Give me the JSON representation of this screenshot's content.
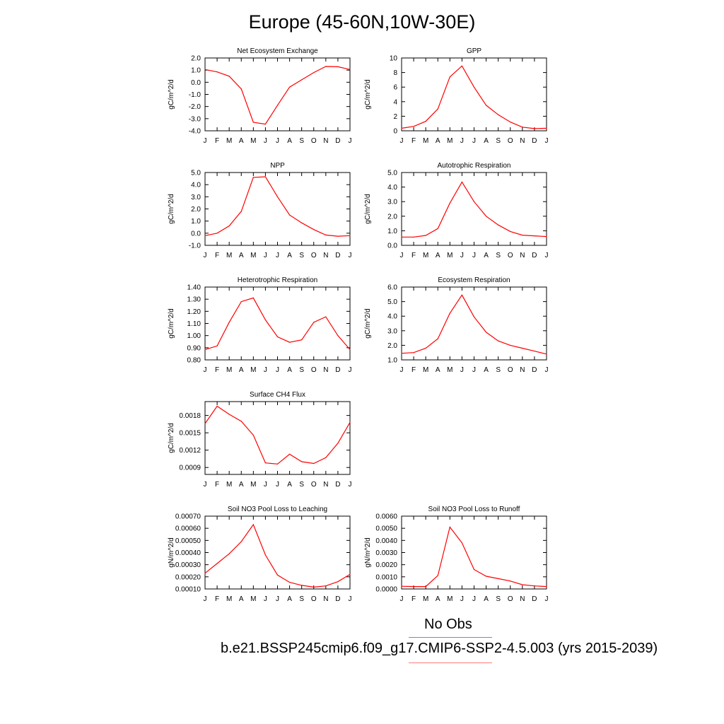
{
  "title": "Europe (45-60N,10W-30E)",
  "legend": {
    "obs_label": "No Obs",
    "obs_color": "#7b7bff",
    "case_label": "b.e21.BSSP245cmip6.f09_g17.CMIP6-SSP2-4.5.003 (yrs 2015-2039)",
    "case_color": "#ff7b7b"
  },
  "series_color": "#ff0000",
  "chart_data": [
    {
      "type": "line",
      "title": "Net Ecosystem Exchange",
      "ylabel": "gC/m^2/d",
      "categories": [
        "J",
        "F",
        "M",
        "A",
        "M",
        "J",
        "J",
        "A",
        "S",
        "O",
        "N",
        "D",
        "J"
      ],
      "ylim": [
        -4.0,
        2.0
      ],
      "yticks": [
        "2.0",
        "1.0",
        "0.0",
        "-1.0",
        "-2.0",
        "-3.0",
        "-4.0"
      ],
      "ytick_values": [
        2.0,
        1.0,
        0.0,
        -1.0,
        -2.0,
        -3.0,
        -4.0
      ],
      "values": [
        1.05,
        0.85,
        0.5,
        -0.55,
        -3.3,
        -3.45,
        -1.9,
        -0.4,
        0.2,
        0.8,
        1.3,
        1.28,
        1.05
      ]
    },
    {
      "type": "line",
      "title": "GPP",
      "ylabel": "gC/m^2/d",
      "categories": [
        "J",
        "F",
        "M",
        "A",
        "M",
        "J",
        "J",
        "A",
        "S",
        "O",
        "N",
        "D",
        "J"
      ],
      "ylim": [
        0,
        10
      ],
      "yticks": [
        "10",
        "8",
        "6",
        "4",
        "2",
        "0"
      ],
      "ytick_values": [
        10,
        8,
        6,
        4,
        2,
        0
      ],
      "values": [
        0.35,
        0.6,
        1.3,
        3.0,
        7.4,
        8.9,
        6.0,
        3.5,
        2.2,
        1.2,
        0.5,
        0.3,
        0.35
      ]
    },
    {
      "type": "line",
      "title": "NPP",
      "ylabel": "gC/m^2/d",
      "categories": [
        "J",
        "F",
        "M",
        "A",
        "M",
        "J",
        "J",
        "A",
        "S",
        "O",
        "N",
        "D",
        "J"
      ],
      "ylim": [
        -1.0,
        5.0
      ],
      "yticks": [
        "5.0",
        "4.0",
        "3.0",
        "2.0",
        "1.0",
        "0.0",
        "-1.0"
      ],
      "ytick_values": [
        5.0,
        4.0,
        3.0,
        2.0,
        1.0,
        0.0,
        -1.0
      ],
      "values": [
        -0.2,
        0.0,
        0.6,
        1.8,
        4.6,
        4.65,
        3.0,
        1.5,
        0.85,
        0.3,
        -0.15,
        -0.25,
        -0.2
      ]
    },
    {
      "type": "line",
      "title": "Autotrophic Respiration",
      "ylabel": "gC/m^2/d",
      "categories": [
        "J",
        "F",
        "M",
        "A",
        "M",
        "J",
        "J",
        "A",
        "S",
        "O",
        "N",
        "D",
        "J"
      ],
      "ylim": [
        0.0,
        5.0
      ],
      "yticks": [
        "5.0",
        "4.0",
        "3.0",
        "2.0",
        "1.0",
        "0.0"
      ],
      "ytick_values": [
        5.0,
        4.0,
        3.0,
        2.0,
        1.0,
        0.0
      ],
      "values": [
        0.57,
        0.57,
        0.68,
        1.15,
        2.9,
        4.35,
        3.0,
        2.0,
        1.4,
        0.95,
        0.7,
        0.65,
        0.6
      ]
    },
    {
      "type": "line",
      "title": "Heterotrophic Respiration",
      "ylabel": "gC/m^2/d",
      "categories": [
        "J",
        "F",
        "M",
        "A",
        "M",
        "J",
        "J",
        "A",
        "S",
        "O",
        "N",
        "D",
        "J"
      ],
      "ylim": [
        0.8,
        1.4
      ],
      "yticks": [
        "1.40",
        "1.30",
        "1.20",
        "1.10",
        "1.00",
        "0.90",
        "0.80"
      ],
      "ytick_values": [
        1.4,
        1.3,
        1.2,
        1.1,
        1.0,
        0.9,
        0.8
      ],
      "values": [
        0.885,
        0.915,
        1.11,
        1.28,
        1.31,
        1.13,
        0.99,
        0.945,
        0.965,
        1.11,
        1.155,
        1.0,
        0.885
      ]
    },
    {
      "type": "line",
      "title": "Ecosystem Respiration",
      "ylabel": "gC/m^2/d",
      "categories": [
        "J",
        "F",
        "M",
        "A",
        "M",
        "J",
        "J",
        "A",
        "S",
        "O",
        "N",
        "D",
        "J"
      ],
      "ylim": [
        1.0,
        6.0
      ],
      "yticks": [
        "6.0",
        "5.0",
        "4.0",
        "3.0",
        "2.0",
        "1.0"
      ],
      "ytick_values": [
        6.0,
        5.0,
        4.0,
        3.0,
        2.0,
        1.0
      ],
      "values": [
        1.45,
        1.5,
        1.8,
        2.45,
        4.2,
        5.45,
        3.95,
        2.9,
        2.3,
        2.0,
        1.8,
        1.6,
        1.4
      ]
    },
    {
      "type": "line",
      "title": "Surface CH4 Flux",
      "ylabel": "gC/m^2/d",
      "categories": [
        "J",
        "F",
        "M",
        "A",
        "M",
        "J",
        "J",
        "A",
        "S",
        "O",
        "N",
        "D",
        "J"
      ],
      "ylim": [
        0.00078,
        0.00204
      ],
      "yticks": [
        "0.0018",
        "0.0015",
        "0.0012",
        "0.0009"
      ],
      "ytick_values": [
        0.0018,
        0.0015,
        0.0012,
        0.0009
      ],
      "values": [
        0.00166,
        0.00196,
        0.00182,
        0.0017,
        0.00146,
        0.00098,
        0.00096,
        0.00113,
        0.001,
        0.00097,
        0.00107,
        0.00132,
        0.00168
      ]
    },
    {
      "type": "line",
      "title": "Soil NO3 Pool Loss to Leaching",
      "ylabel": "gN/m^2/d",
      "categories": [
        "J",
        "F",
        "M",
        "A",
        "M",
        "J",
        "J",
        "A",
        "S",
        "O",
        "N",
        "D",
        "J"
      ],
      "ylim": [
        0.0001,
        0.0007
      ],
      "yticks": [
        "0.00070",
        "0.00060",
        "0.00050",
        "0.00040",
        "0.00030",
        "0.00020",
        "0.00010"
      ],
      "ytick_values": [
        0.0007,
        0.0006,
        0.0005,
        0.0004,
        0.0003,
        0.0002,
        0.0001
      ],
      "values": [
        0.00023,
        0.00031,
        0.00039,
        0.00049,
        0.00063,
        0.00038,
        0.000215,
        0.000155,
        0.00013,
        0.000115,
        0.000125,
        0.00016,
        0.00022
      ]
    },
    {
      "type": "line",
      "title": "Soil NO3 Pool Loss to Runoff",
      "ylabel": "gN/m^2/d",
      "categories": [
        "J",
        "F",
        "M",
        "A",
        "M",
        "J",
        "J",
        "A",
        "S",
        "O",
        "N",
        "D",
        "J"
      ],
      "ylim": [
        0.0,
        0.006
      ],
      "yticks": [
        "0.0060",
        "0.0050",
        "0.0040",
        "0.0030",
        "0.0020",
        "0.0010",
        "0.0000"
      ],
      "ytick_values": [
        0.006,
        0.005,
        0.004,
        0.003,
        0.002,
        0.001,
        0.0
      ],
      "values": [
        0.00022,
        0.0002,
        0.0002,
        0.0011,
        0.0051,
        0.0038,
        0.0016,
        0.00105,
        0.00085,
        0.00065,
        0.00035,
        0.00025,
        0.0002
      ]
    }
  ]
}
